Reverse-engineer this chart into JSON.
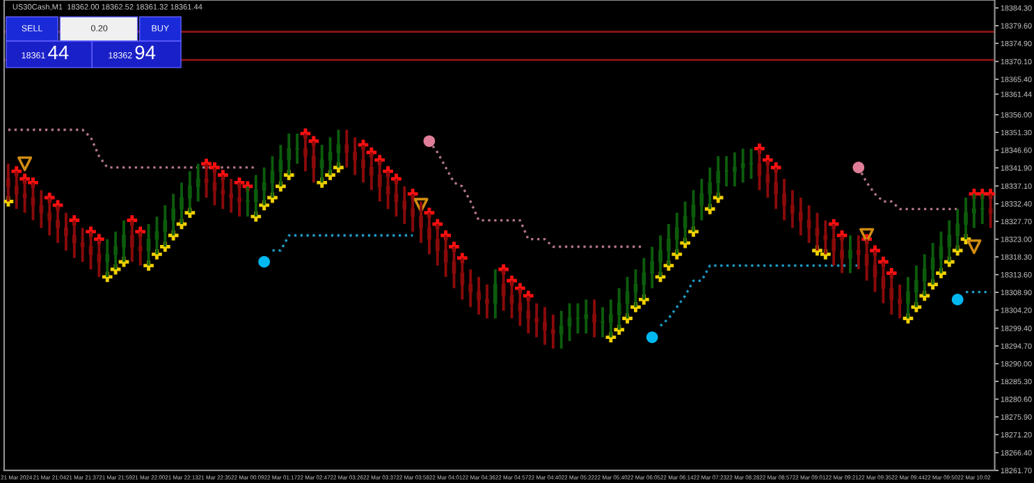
{
  "chart_data": {
    "type": "candlestick",
    "title": "US30Cash,M1  18362.00 18362.52 18361.32 18361.44",
    "annotations": [
      "SELL",
      "0.20",
      "BUY",
      "18361",
      "44",
      "18362",
      "94"
    ],
    "categories": [
      null,
      "21 Mar 2024",
      null,
      null,
      null,
      "21 Mar 21:04",
      null,
      null,
      null,
      "21 Mar 21:37",
      null,
      null,
      null,
      "21 Mar 21:59",
      null,
      null,
      null,
      "21 Mar 22:00",
      null,
      null,
      null,
      "21 Mar 22:13",
      null,
      null,
      null,
      "21 Mar 22:35",
      null,
      null,
      null,
      "22 Mar 00:09",
      null,
      null,
      null,
      "22 Mar 01:17",
      null,
      null,
      null,
      "22 Mar 02:47",
      null,
      null,
      null,
      "22 Mar 03:26",
      null,
      null,
      null,
      "22 Mar 03:37",
      null,
      null,
      null,
      "22 Mar 03:58",
      null,
      null,
      null,
      "22 Mar 04:01",
      null,
      null,
      null,
      "22 Mar 04:36",
      null,
      null,
      null,
      "22 Mar 04:57",
      null,
      null,
      null,
      "22 Mar 04:40",
      null,
      null,
      null,
      "22 Mar 05:22",
      null,
      null,
      null,
      "22 Mar 05:40",
      null,
      null,
      null,
      "22 Mar 06:05",
      null,
      null,
      null,
      "22 Mar 06:14",
      null,
      null,
      null,
      "22 Mar 07:23",
      null,
      null,
      null,
      "22 Mar 08:28",
      null,
      null,
      null,
      "22 Mar 08:57",
      null,
      null,
      null,
      "22 Mar 09:01",
      null,
      null,
      null,
      "22 Mar 09:21",
      null,
      null,
      null,
      "22 Mar 09:35",
      null,
      null,
      null,
      "22 Mar 09:44",
      null,
      null,
      null,
      "22 Mar 09:50",
      null,
      null,
      null,
      "22 Mar 10:02",
      null,
      null
    ],
    "colors": [
      "#8a0a0a",
      "#8a0a0a",
      "#8a0a0a",
      "#8a0a0a",
      "#8a0a0a",
      "#8a0a0a",
      "#8a0a0a",
      "#8a0a0a",
      "#8a0a0a",
      "#8a0a0a",
      "#8a0a0a",
      "#8a0a0a",
      "#0c5c0c",
      "#0c5c0c",
      "#0c5c0c",
      "#8a0a0a",
      "#8a0a0a",
      "#0c5c0c",
      "#0c5c0c",
      "#0c5c0c",
      "#0c5c0c",
      "#0c5c0c",
      "#0c5c0c",
      "#0c5c0c",
      "#8a0a0a",
      "#8a0a0a",
      "#8a0a0a",
      "#8a0a0a",
      "#8a0a0a",
      "#0c5c0c",
      "#0c5c0c",
      "#0c5c0c",
      "#0c5c0c",
      "#0c5c0c",
      "#0c5c0c",
      "#0c5c0c",
      "#8a0a0a",
      "#8a0a0a",
      "#0c5c0c",
      "#0c5c0c",
      "#0c5c0c",
      "#8a0a0a",
      "#8a0a0a",
      "#8a0a0a",
      "#8a0a0a",
      "#8a0a0a",
      "#8a0a0a",
      "#8a0a0a",
      "#8a0a0a",
      "#8a0a0a",
      "#8a0a0a",
      "#8a0a0a",
      "#8a0a0a",
      "#8a0a0a",
      "#8a0a0a",
      "#8a0a0a",
      "#8a0a0a",
      "#8a0a0a",
      "#8a0a0a",
      "#0c5c0c",
      "#8a0a0a",
      "#8a0a0a",
      "#8a0a0a",
      "#8a0a0a",
      "#8a0a0a",
      "#8a0a0a",
      "#8a0a0a",
      "#0c5c0c",
      "#0c5c0c",
      "#0c5c0c",
      "#0c5c0c",
      "#8a0a0a",
      "#0c5c0c",
      "#0c5c0c",
      "#0c5c0c",
      "#0c5c0c",
      "#0c5c0c",
      "#0c5c0c",
      "#0c5c0c",
      "#0c5c0c",
      "#0c5c0c",
      "#0c5c0c",
      "#0c5c0c",
      "#0c5c0c",
      "#0c5c0c",
      "#0c5c0c",
      "#0c5c0c",
      "#0c5c0c",
      "#0c5c0c",
      "#0c5c0c",
      "#0c5c0c",
      "#8a0a0a",
      "#8a0a0a",
      "#8a0a0a",
      "#8a0a0a",
      "#8a0a0a",
      "#8a0a0a",
      "#8a0a0a",
      "#8a0a0a",
      "#8a0a0a",
      "#8a0a0a",
      "#8a0a0a",
      "#0c5c0c",
      "#8a0a0a",
      "#8a0a0a",
      "#8a0a0a",
      "#8a0a0a",
      "#8a0a0a",
      "#8a0a0a",
      "#0c5c0c",
      "#0c5c0c",
      "#0c5c0c",
      "#0c5c0c",
      "#0c5c0c",
      "#0c5c0c",
      "#0c5c0c",
      "#0c5c0c",
      "#0c5c0c",
      "#0c5c0c",
      "#8a0a0a"
    ],
    "ohlc": [
      [
        18339,
        18343,
        18333,
        18337
      ],
      [
        18337,
        18341,
        18331,
        18335
      ],
      [
        18335,
        18339,
        18330,
        18334
      ],
      [
        18334,
        18338,
        18328,
        18332
      ],
      [
        18332,
        18336,
        18326,
        18330
      ],
      [
        18330,
        18334,
        18324,
        18328
      ],
      [
        18328,
        18332,
        18322,
        18326
      ],
      [
        18326,
        18330,
        18320,
        18324
      ],
      [
        18324,
        18328,
        18318,
        18322
      ],
      [
        18322,
        18326,
        18317,
        18321
      ],
      [
        18321,
        18325,
        18315,
        18319
      ],
      [
        18319,
        18323,
        18313,
        18317
      ],
      [
        18317,
        18323,
        18313,
        18319
      ],
      [
        18319,
        18325,
        18315,
        18321
      ],
      [
        18321,
        18328,
        18317,
        18324
      ],
      [
        18324,
        18328,
        18317,
        18321
      ],
      [
        18321,
        18325,
        18316,
        18320
      ],
      [
        18320,
        18327,
        18316,
        18323
      ],
      [
        18323,
        18329,
        18319,
        18325
      ],
      [
        18325,
        18332,
        18321,
        18328
      ],
      [
        18328,
        18335,
        18324,
        18331
      ],
      [
        18331,
        18338,
        18327,
        18334
      ],
      [
        18334,
        18341,
        18330,
        18337
      ],
      [
        18337,
        18343,
        18333,
        18339
      ],
      [
        18339,
        18343,
        18334,
        18338
      ],
      [
        18338,
        18342,
        18332,
        18336
      ],
      [
        18336,
        18340,
        18331,
        18335
      ],
      [
        18335,
        18339,
        18330,
        18334
      ],
      [
        18334,
        18338,
        18329,
        18333
      ],
      [
        18333,
        18337,
        18329,
        18333
      ],
      [
        18333,
        18340,
        18329,
        18336
      ],
      [
        18336,
        18342,
        18332,
        18338
      ],
      [
        18338,
        18345,
        18334,
        18341
      ],
      [
        18341,
        18348,
        18337,
        18344
      ],
      [
        18344,
        18351,
        18340,
        18347
      ],
      [
        18347,
        18351,
        18343,
        18347
      ],
      [
        18347,
        18351,
        18341,
        18345
      ],
      [
        18345,
        18349,
        18338,
        18342
      ],
      [
        18342,
        18348,
        18338,
        18344
      ],
      [
        18344,
        18350,
        18340,
        18346
      ],
      [
        18346,
        18352,
        18342,
        18348
      ],
      [
        18348,
        18352,
        18342,
        18346
      ],
      [
        18346,
        18350,
        18340,
        18344
      ],
      [
        18344,
        18348,
        18338,
        18342
      ],
      [
        18342,
        18346,
        18336,
        18340
      ],
      [
        18340,
        18344,
        18333,
        18337
      ],
      [
        18337,
        18341,
        18331,
        18335
      ],
      [
        18335,
        18339,
        18329,
        18333
      ],
      [
        18333,
        18337,
        18327,
        18331
      ],
      [
        18331,
        18335,
        18325,
        18329
      ],
      [
        18329,
        18333,
        18322,
        18326
      ],
      [
        18326,
        18330,
        18319,
        18323
      ],
      [
        18323,
        18327,
        18316,
        18320
      ],
      [
        18320,
        18324,
        18313,
        18317
      ],
      [
        18317,
        18321,
        18310,
        18314
      ],
      [
        18314,
        18318,
        18307,
        18311
      ],
      [
        18311,
        18315,
        18305,
        18309
      ],
      [
        18309,
        18313,
        18303,
        18307
      ],
      [
        18307,
        18311,
        18302,
        18306
      ],
      [
        18306,
        18315,
        18302,
        18311
      ],
      [
        18311,
        18315,
        18304,
        18308
      ],
      [
        18308,
        18312,
        18302,
        18306
      ],
      [
        18306,
        18310,
        18300,
        18304
      ],
      [
        18304,
        18308,
        18298,
        18302
      ],
      [
        18302,
        18306,
        18297,
        18301
      ],
      [
        18301,
        18305,
        18295,
        18299
      ],
      [
        18299,
        18303,
        18294,
        18298
      ],
      [
        18298,
        18304,
        18294,
        18300
      ],
      [
        18300,
        18306,
        18296,
        18302
      ],
      [
        18302,
        18306,
        18298,
        18302
      ],
      [
        18302,
        18307,
        18298,
        18303
      ],
      [
        18303,
        18307,
        18297,
        18301
      ],
      [
        18301,
        18305,
        18297,
        18301
      ],
      [
        18301,
        18307,
        18297,
        18303
      ],
      [
        18303,
        18310,
        18299,
        18306
      ],
      [
        18306,
        18313,
        18302,
        18309
      ],
      [
        18309,
        18315,
        18305,
        18311
      ],
      [
        18311,
        18318,
        18307,
        18314
      ],
      [
        18314,
        18321,
        18310,
        18317
      ],
      [
        18317,
        18324,
        18313,
        18320
      ],
      [
        18320,
        18327,
        18316,
        18323
      ],
      [
        18323,
        18330,
        18319,
        18326
      ],
      [
        18326,
        18333,
        18322,
        18329
      ],
      [
        18329,
        18336,
        18325,
        18332
      ],
      [
        18332,
        18339,
        18328,
        18335
      ],
      [
        18335,
        18342,
        18331,
        18338
      ],
      [
        18338,
        18345,
        18334,
        18341
      ],
      [
        18341,
        18345,
        18337,
        18341
      ],
      [
        18341,
        18346,
        18337,
        18342
      ],
      [
        18342,
        18347,
        18338,
        18343
      ],
      [
        18343,
        18347,
        18339,
        18343
      ],
      [
        18343,
        18347,
        18336,
        18340
      ],
      [
        18340,
        18344,
        18334,
        18338
      ],
      [
        18338,
        18342,
        18331,
        18335
      ],
      [
        18335,
        18339,
        18328,
        18332
      ],
      [
        18332,
        18336,
        18326,
        18330
      ],
      [
        18330,
        18334,
        18324,
        18328
      ],
      [
        18328,
        18332,
        18322,
        18326
      ],
      [
        18326,
        18330,
        18320,
        18324
      ],
      [
        18324,
        18328,
        18319,
        18323
      ],
      [
        18323,
        18327,
        18316,
        18320
      ],
      [
        18320,
        18324,
        18314,
        18318
      ],
      [
        18318,
        18324,
        18314,
        18320
      ],
      [
        18320,
        18324,
        18315,
        18319
      ],
      [
        18319,
        18323,
        18312,
        18316
      ],
      [
        18316,
        18320,
        18309,
        18313
      ],
      [
        18313,
        18317,
        18306,
        18310
      ],
      [
        18310,
        18314,
        18303,
        18307
      ],
      [
        18307,
        18311,
        18302,
        18306
      ],
      [
        18306,
        18313,
        18302,
        18309
      ],
      [
        18309,
        18316,
        18305,
        18312
      ],
      [
        18312,
        18319,
        18308,
        18315
      ],
      [
        18315,
        18322,
        18311,
        18318
      ],
      [
        18318,
        18325,
        18314,
        18321
      ],
      [
        18321,
        18328,
        18317,
        18324
      ],
      [
        18324,
        18331,
        18320,
        18327
      ],
      [
        18327,
        18334,
        18323,
        18330
      ],
      [
        18330,
        18335,
        18326,
        18331
      ],
      [
        18331,
        18335,
        18327,
        18331
      ],
      [
        18331,
        18335,
        18326,
        18330
      ]
    ],
    "series": [
      {
        "type": "line",
        "color": "#b07585",
        "line_style": "dotted",
        "values": [
          18352,
          18352,
          18352,
          18352,
          18352,
          18352,
          18352,
          18352,
          18352,
          18352,
          18350,
          18345,
          18342,
          18342,
          18342,
          18342,
          18342,
          18342,
          18342,
          18342,
          18342,
          18342,
          18342,
          18342,
          18342,
          18342,
          18342,
          18342,
          18342,
          18342,
          18342,
          null,
          null,
          null,
          null,
          null,
          null,
          null,
          null,
          null,
          null,
          null,
          null,
          null,
          null,
          null,
          null,
          null,
          null,
          null,
          null,
          18349,
          18346,
          18342,
          18338,
          18337,
          18333,
          18328,
          18328,
          18328,
          18328,
          18328,
          18328,
          18323,
          18323,
          18323,
          18321,
          18321,
          18321,
          18321,
          18321,
          18321,
          18321,
          18321,
          18321,
          18321,
          18321,
          18321,
          null,
          null,
          null,
          null,
          null,
          null,
          null,
          null,
          null,
          null,
          null,
          null,
          null,
          null,
          null,
          null,
          null,
          null,
          null,
          null,
          null,
          null,
          null,
          null,
          null,
          18342,
          18338,
          18335,
          18333,
          18333,
          18331,
          18331,
          18331,
          18331,
          18331,
          18331,
          18331,
          18331,
          null,
          null,
          null,
          null
        ]
      },
      {
        "type": "line",
        "color": "#1e9cc8",
        "line_style": "dotted",
        "values": [
          null,
          null,
          null,
          null,
          null,
          null,
          null,
          null,
          null,
          null,
          null,
          null,
          null,
          null,
          null,
          null,
          null,
          null,
          null,
          null,
          null,
          null,
          null,
          null,
          null,
          null,
          null,
          null,
          null,
          null,
          null,
          null,
          18320,
          18320,
          18324,
          18324,
          18324,
          18324,
          18324,
          18324,
          18324,
          18324,
          18324,
          18324,
          18324,
          18324,
          18324,
          18324,
          18324,
          18324,
          null,
          null,
          null,
          null,
          null,
          null,
          null,
          null,
          null,
          null,
          null,
          null,
          null,
          null,
          null,
          null,
          null,
          null,
          null,
          null,
          null,
          null,
          null,
          null,
          null,
          null,
          null,
          null,
          null,
          18300,
          18302,
          18305,
          18308,
          18312,
          18312,
          18316,
          18316,
          18316,
          18316,
          18316,
          18316,
          18316,
          18316,
          18316,
          18316,
          18316,
          18316,
          18316,
          18316,
          18316,
          18316,
          18316,
          18316,
          18316,
          null,
          null,
          null,
          null,
          null,
          null,
          null,
          null,
          null,
          null,
          null,
          null,
          18309,
          18309,
          18309,
          18309
        ]
      },
      {
        "type": "scatter",
        "color": "#ff1010",
        "marker": "cross",
        "values": [
          null,
          18341,
          18339,
          18338,
          null,
          18334,
          18332,
          null,
          18328,
          null,
          18325,
          18323,
          null,
          null,
          null,
          18328,
          18325,
          null,
          null,
          null,
          null,
          null,
          null,
          null,
          18343,
          18342,
          18340,
          null,
          18338,
          18337,
          null,
          null,
          null,
          null,
          null,
          null,
          18351,
          18349,
          null,
          null,
          null,
          null,
          null,
          18348,
          18346,
          18344,
          18341,
          18339,
          null,
          18335,
          null,
          18330,
          18327,
          18324,
          18321,
          18318,
          null,
          null,
          null,
          null,
          18315,
          18312,
          18310,
          18308,
          null,
          null,
          null,
          null,
          null,
          null,
          null,
          null,
          null,
          null,
          null,
          null,
          null,
          null,
          null,
          null,
          null,
          null,
          null,
          null,
          null,
          null,
          null,
          null,
          null,
          null,
          null,
          18347,
          18344,
          18342,
          null,
          null,
          null,
          null,
          null,
          null,
          18327,
          18324,
          null,
          null,
          18323,
          18320,
          18317,
          18314,
          null,
          null,
          null,
          null,
          null,
          null,
          null,
          null,
          null,
          18335,
          18335,
          18335
        ]
      },
      {
        "type": "scatter",
        "color": "#f0d000",
        "marker": "cross",
        "values": [
          18333,
          null,
          null,
          null,
          null,
          null,
          null,
          null,
          null,
          null,
          null,
          null,
          18313,
          18315,
          18317,
          null,
          null,
          18316,
          18319,
          18321,
          18324,
          18327,
          18330,
          null,
          null,
          null,
          null,
          null,
          null,
          null,
          18329,
          18332,
          18334,
          18337,
          18340,
          null,
          null,
          null,
          18338,
          18340,
          18342,
          null,
          null,
          null,
          null,
          null,
          null,
          null,
          null,
          null,
          null,
          null,
          null,
          null,
          null,
          null,
          null,
          null,
          null,
          null,
          null,
          null,
          null,
          null,
          null,
          null,
          null,
          null,
          null,
          null,
          null,
          null,
          null,
          18297,
          18299,
          18302,
          18305,
          18307,
          null,
          18313,
          18316,
          18319,
          18322,
          18325,
          null,
          18331,
          18334,
          null,
          null,
          null,
          null,
          null,
          null,
          null,
          null,
          null,
          null,
          null,
          18320,
          18319,
          null,
          null,
          null,
          null,
          null,
          null,
          null,
          null,
          null,
          18302,
          18305,
          18308,
          18311,
          18314,
          18317,
          18320,
          18323,
          null,
          null,
          null
        ]
      },
      {
        "type": "scatter",
        "color": "#e07e98",
        "marker": "circle",
        "values": [
          null,
          null,
          null,
          null,
          null,
          null,
          null,
          null,
          null,
          null,
          null,
          null,
          null,
          null,
          null,
          null,
          null,
          null,
          null,
          null,
          null,
          null,
          null,
          null,
          null,
          null,
          null,
          null,
          null,
          null,
          null,
          null,
          null,
          null,
          null,
          null,
          null,
          null,
          null,
          null,
          null,
          null,
          null,
          null,
          null,
          null,
          null,
          null,
          null,
          null,
          null,
          18349,
          null,
          null,
          null,
          null,
          null,
          null,
          null,
          null,
          null,
          null,
          null,
          null,
          null,
          null,
          null,
          null,
          null,
          null,
          null,
          null,
          null,
          null,
          null,
          null,
          null,
          null,
          null,
          null,
          null,
          null,
          null,
          null,
          null,
          null,
          null,
          null,
          null,
          null,
          null,
          null,
          null,
          null,
          null,
          null,
          null,
          null,
          null,
          null,
          null,
          null,
          null,
          18342,
          null,
          null,
          null,
          null,
          null,
          null,
          null,
          null,
          null,
          null,
          null,
          null,
          null,
          null,
          null,
          null
        ]
      },
      {
        "type": "scatter",
        "color": "#00b8f0",
        "marker": "circle",
        "values": [
          null,
          null,
          null,
          null,
          null,
          null,
          null,
          null,
          null,
          null,
          null,
          null,
          null,
          null,
          null,
          null,
          null,
          null,
          null,
          null,
          null,
          null,
          null,
          null,
          null,
          null,
          null,
          null,
          null,
          null,
          null,
          18317,
          null,
          null,
          null,
          null,
          null,
          null,
          null,
          null,
          null,
          null,
          null,
          null,
          null,
          null,
          null,
          null,
          null,
          null,
          null,
          null,
          null,
          null,
          null,
          null,
          null,
          null,
          null,
          null,
          null,
          null,
          null,
          null,
          null,
          null,
          null,
          null,
          null,
          null,
          null,
          null,
          null,
          null,
          null,
          null,
          null,
          null,
          18297,
          null,
          null,
          null,
          null,
          null,
          null,
          null,
          null,
          null,
          null,
          null,
          null,
          null,
          null,
          null,
          null,
          null,
          null,
          null,
          null,
          null,
          null,
          null,
          null,
          null,
          null,
          null,
          null,
          null,
          null,
          null,
          null,
          null,
          null,
          null,
          null,
          18307,
          null,
          null,
          null,
          null
        ]
      },
      {
        "type": "scatter",
        "color": "#d08c10",
        "marker": "triangle",
        "values": [
          null,
          null,
          18343,
          null,
          null,
          null,
          null,
          null,
          null,
          null,
          null,
          null,
          null,
          null,
          null,
          null,
          null,
          null,
          null,
          null,
          null,
          null,
          null,
          null,
          null,
          null,
          null,
          null,
          null,
          null,
          null,
          null,
          null,
          null,
          null,
          null,
          null,
          null,
          null,
          null,
          null,
          null,
          null,
          null,
          null,
          null,
          null,
          null,
          null,
          null,
          18332,
          null,
          null,
          null,
          null,
          null,
          null,
          null,
          null,
          null,
          null,
          null,
          null,
          null,
          null,
          null,
          null,
          null,
          null,
          null,
          null,
          null,
          null,
          null,
          null,
          null,
          null,
          null,
          null,
          null,
          null,
          null,
          null,
          null,
          null,
          null,
          null,
          null,
          null,
          null,
          null,
          null,
          null,
          null,
          null,
          null,
          null,
          null,
          null,
          null,
          null,
          null,
          null,
          null,
          18324,
          null,
          null,
          null,
          null,
          null,
          null,
          null,
          null,
          null,
          null,
          null,
          null,
          null,
          null,
          null
        ]
      },
      {
        "type": "scatter",
        "color": "#d08c10",
        "marker": "triangle",
        "values": [
          null,
          null,
          null,
          null,
          null,
          null,
          null,
          null,
          null,
          null,
          null,
          null,
          null,
          null,
          null,
          null,
          null,
          null,
          null,
          null,
          null,
          null,
          null,
          null,
          null,
          null,
          null,
          null,
          null,
          null,
          null,
          null,
          null,
          null,
          null,
          null,
          null,
          null,
          null,
          null,
          null,
          null,
          null,
          null,
          null,
          null,
          null,
          null,
          null,
          null,
          null,
          null,
          null,
          null,
          null,
          null,
          null,
          null,
          null,
          null,
          null,
          null,
          null,
          null,
          null,
          null,
          null,
          null,
          null,
          null,
          null,
          null,
          null,
          null,
          null,
          null,
          null,
          null,
          null,
          null,
          null,
          null,
          null,
          null,
          null,
          null,
          null,
          null,
          null,
          null,
          null,
          null,
          null,
          null,
          null,
          null,
          null,
          null,
          null,
          null,
          null,
          null,
          null,
          null,
          null,
          null,
          null,
          null,
          null,
          null,
          null,
          null,
          null,
          null,
          null,
          null,
          null,
          18321,
          null,
          null
        ]
      }
    ],
    "ref_lines": [
      {
        "axis": "y",
        "value": 18378,
        "color": "#8b1515"
      },
      {
        "axis": "y",
        "value": 18370.5,
        "color": "#8b1515"
      }
    ],
    "ylim": [
      18261.7,
      18386.4
    ],
    "yticks": [
      {
        "value": 18384.3,
        "label": "18384.30"
      },
      {
        "value": 18379.6,
        "label": "18379.60"
      },
      {
        "value": 18374.9,
        "label": "18374.90"
      },
      {
        "value": 18370.1,
        "label": "18370.10"
      },
      {
        "value": 18365.4,
        "label": "18365.40"
      },
      {
        "value": 18361.44,
        "label": "18361.44"
      },
      {
        "value": 18356,
        "label": "18356.00"
      },
      {
        "value": 18351.3,
        "label": "18351.30"
      },
      {
        "value": 18346.6,
        "label": "18346.60"
      },
      {
        "value": 18341.9,
        "label": "18341.90"
      },
      {
        "value": 18337.1,
        "label": "18337.10"
      },
      {
        "value": 18332.4,
        "label": "18332.40"
      },
      {
        "value": 18327.7,
        "label": "18327.70"
      },
      {
        "value": 18323,
        "label": "18323.00"
      },
      {
        "value": 18318.3,
        "label": "18318.30"
      },
      {
        "value": 18313.6,
        "label": "18313.60"
      },
      {
        "value": 18308.9,
        "label": "18308.90"
      },
      {
        "value": 18304.2,
        "label": "18304.20"
      },
      {
        "value": 18299.4,
        "label": "18299.40"
      },
      {
        "value": 18294.7,
        "label": "18294.70"
      },
      {
        "value": 18290,
        "label": "18290.00"
      },
      {
        "value": 18285.3,
        "label": "18285.30"
      },
      {
        "value": 18280.6,
        "label": "18280.60"
      },
      {
        "value": 18275.9,
        "label": "18275.90"
      },
      {
        "value": 18271.2,
        "label": "18271.20"
      },
      {
        "value": 18266.4,
        "label": "18266.40"
      },
      {
        "value": 18261.7,
        "label": "18261.70"
      }
    ],
    "grid": false,
    "legend": false
  }
}
